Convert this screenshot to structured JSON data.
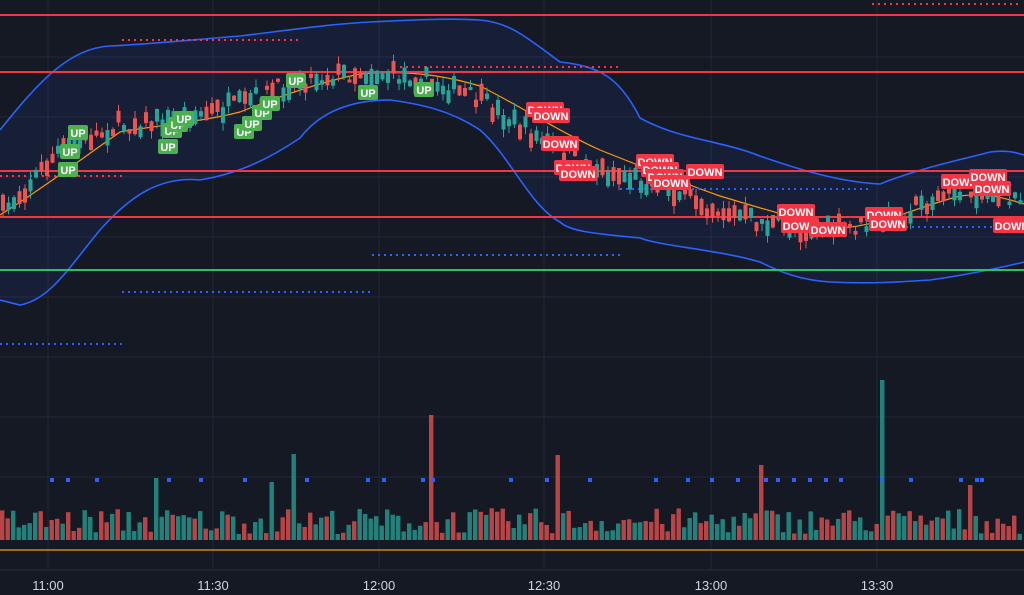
{
  "chart_data": {
    "type": "candlestick",
    "x_ticks": [
      "11:00",
      "11:30",
      "12:00",
      "12:30",
      "13:00",
      "13:30"
    ],
    "signal_labels": {
      "up": "UP",
      "down": "DOWN"
    },
    "colors": {
      "background": "#151924",
      "grid": "#232733",
      "bull": "#26a69a",
      "bear": "#ef5350",
      "band_line": "#2962ff",
      "band_fill": "#2962ff",
      "basis": "#ff9800",
      "level_red": "#f23645",
      "level_green": "#22c55e",
      "dots_blue": "#2962ff",
      "dots_red": "#f23645",
      "up_label": "#4caf50",
      "down_label": "#f23645"
    }
  }
}
